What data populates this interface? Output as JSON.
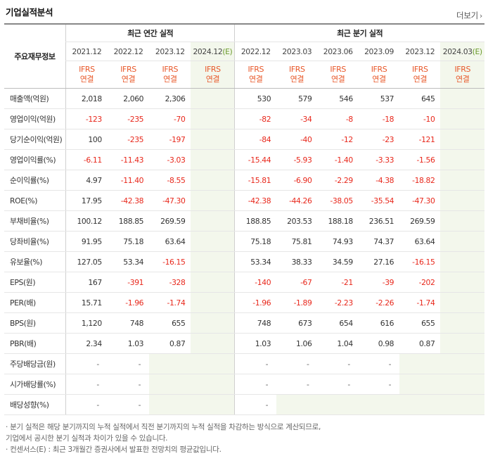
{
  "section": {
    "title": "기업실적분석",
    "more_label": "더보기"
  },
  "header": {
    "label": "주요재무정보",
    "annual_group": "최근 연간 실적",
    "quarter_group": "최근 분기 실적",
    "annual_periods": [
      "2021.12",
      "2022.12",
      "2023.12",
      "2024.12"
    ],
    "annual_estimate_suffix": "(E)",
    "quarter_periods": [
      "2022.12",
      "2023.03",
      "2023.06",
      "2023.09",
      "2023.12",
      "2024.03"
    ],
    "quarter_estimate_suffix": "(E)",
    "ifrs_line1": "IFRS",
    "ifrs_line2": "연결"
  },
  "rows": [
    {
      "label": "매출액(억원)",
      "annual": [
        "2,018",
        "2,060",
        "2,306",
        ""
      ],
      "quarter": [
        "530",
        "579",
        "546",
        "537",
        "645",
        ""
      ]
    },
    {
      "label": "영업이익(억원)",
      "annual": [
        "-123",
        "-235",
        "-70",
        ""
      ],
      "quarter": [
        "-82",
        "-34",
        "-8",
        "-18",
        "-10",
        ""
      ]
    },
    {
      "label": "당기순이익(억원)",
      "annual": [
        "100",
        "-235",
        "-197",
        ""
      ],
      "quarter": [
        "-84",
        "-40",
        "-12",
        "-23",
        "-121",
        ""
      ]
    },
    {
      "label": "영업이익률(%)",
      "annual": [
        "-6.11",
        "-11.43",
        "-3.03",
        ""
      ],
      "quarter": [
        "-15.44",
        "-5.93",
        "-1.40",
        "-3.33",
        "-1.56",
        ""
      ]
    },
    {
      "label": "순이익률(%)",
      "annual": [
        "4.97",
        "-11.40",
        "-8.55",
        ""
      ],
      "quarter": [
        "-15.81",
        "-6.90",
        "-2.29",
        "-4.38",
        "-18.82",
        ""
      ]
    },
    {
      "label": "ROE(%)",
      "annual": [
        "17.95",
        "-42.38",
        "-47.30",
        ""
      ],
      "quarter": [
        "-42.38",
        "-44.26",
        "-38.05",
        "-35.54",
        "-47.30",
        ""
      ]
    },
    {
      "label": "부채비율(%)",
      "annual": [
        "100.12",
        "188.85",
        "269.59",
        ""
      ],
      "quarter": [
        "188.85",
        "203.53",
        "188.18",
        "236.51",
        "269.59",
        ""
      ]
    },
    {
      "label": "당좌비율(%)",
      "annual": [
        "91.95",
        "75.18",
        "63.64",
        ""
      ],
      "quarter": [
        "75.18",
        "75.81",
        "74.93",
        "74.37",
        "63.64",
        ""
      ]
    },
    {
      "label": "유보율(%)",
      "annual": [
        "127.05",
        "53.34",
        "-16.15",
        ""
      ],
      "quarter": [
        "53.34",
        "38.33",
        "34.59",
        "27.16",
        "-16.15",
        ""
      ]
    },
    {
      "label": "EPS(원)",
      "annual": [
        "167",
        "-391",
        "-328",
        ""
      ],
      "quarter": [
        "-140",
        "-67",
        "-21",
        "-39",
        "-202",
        ""
      ]
    },
    {
      "label": "PER(배)",
      "annual": [
        "15.71",
        "-1.96",
        "-1.74",
        ""
      ],
      "quarter": [
        "-1.96",
        "-1.89",
        "-2.23",
        "-2.26",
        "-1.74",
        ""
      ]
    },
    {
      "label": "BPS(원)",
      "annual": [
        "1,120",
        "748",
        "655",
        ""
      ],
      "quarter": [
        "748",
        "673",
        "654",
        "616",
        "655",
        ""
      ]
    },
    {
      "label": "PBR(배)",
      "annual": [
        "2.34",
        "1.03",
        "0.87",
        ""
      ],
      "quarter": [
        "1.03",
        "1.06",
        "1.04",
        "0.98",
        "0.87",
        ""
      ]
    },
    {
      "label": "주당배당금(원)",
      "annual": [
        "-",
        "-",
        "",
        ""
      ],
      "quarter": [
        "-",
        "-",
        "-",
        "-",
        "",
        ""
      ]
    },
    {
      "label": "시가배당률(%)",
      "annual": [
        "-",
        "-",
        "",
        ""
      ],
      "quarter": [
        "-",
        "-",
        "-",
        "-",
        "",
        ""
      ]
    },
    {
      "label": "배당성향(%)",
      "annual": [
        "-",
        "-",
        "",
        ""
      ],
      "quarter": [
        "-",
        "",
        "",
        "",
        "",
        ""
      ]
    }
  ],
  "notes": [
    "· 분기 실적은 해당 분기까지의 누적 실적에서 직전 분기까지의 누적 실적을 차감하는 방식으로 계산되므로,",
    "  기업에서 공시한 분기 실적과 차이가 있을 수 있습니다.",
    "· 컨센서스(E) : 최근 3개월간 증권사에서 발표한 전망치의 평균값입니다."
  ]
}
